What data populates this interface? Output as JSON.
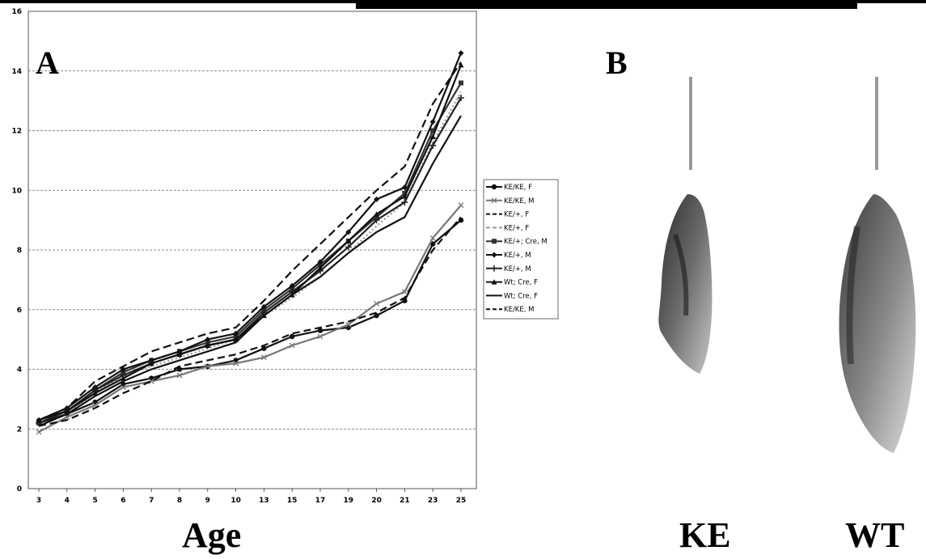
{
  "panels": {
    "a_label": "A",
    "b_label": "B"
  },
  "photo_labels": {
    "ke": "KE",
    "wt": "WT"
  },
  "chart_data": {
    "type": "line",
    "title": "",
    "xlabel": "Age",
    "ylabel": "",
    "categories": [
      "3",
      "4",
      "5",
      "6",
      "7",
      "8",
      "9",
      "10",
      "13",
      "15",
      "17",
      "19",
      "20",
      "21",
      "23",
      "25"
    ],
    "ylim": [
      0,
      16
    ],
    "yticks": [
      "0",
      "2",
      "4",
      "6",
      "8",
      "10",
      "12",
      "14",
      "16"
    ],
    "grid": true,
    "legend_position": "right",
    "series": [
      {
        "name": "KE/KE, F",
        "color": "#111111",
        "dash": "none",
        "marker": "circle",
        "values": [
          2.2,
          2.5,
          2.9,
          3.5,
          3.7,
          4.0,
          4.1,
          4.3,
          4.7,
          5.1,
          5.3,
          5.4,
          5.8,
          6.3,
          8.2,
          9.0
        ]
      },
      {
        "name": "KE/KE, M",
        "color": "#777777",
        "dash": "none",
        "marker": "x",
        "values": [
          1.9,
          2.4,
          2.8,
          3.4,
          3.6,
          3.8,
          4.1,
          4.2,
          4.4,
          4.8,
          5.1,
          5.5,
          6.2,
          6.6,
          8.4,
          9.5
        ]
      },
      {
        "name": "KE/+, F",
        "color": "#111111",
        "dash": "10,5",
        "marker": "none",
        "values": [
          2.3,
          2.7,
          3.6,
          4.1,
          4.6,
          4.9,
          5.2,
          5.4,
          6.3,
          7.3,
          8.2,
          9.1,
          10.0,
          10.8,
          12.9,
          14.3
        ]
      },
      {
        "name": "KE/+, F",
        "color": "#999999",
        "dash": "2,3",
        "marker": "none",
        "values": [
          2.1,
          2.5,
          3.2,
          3.8,
          4.1,
          4.4,
          4.7,
          5.0,
          5.8,
          6.4,
          7.1,
          7.9,
          8.8,
          9.6,
          11.6,
          13.3
        ]
      },
      {
        "name": "KE/+; Cre, M",
        "color": "#333333",
        "dash": "none",
        "marker": "square",
        "values": [
          2.2,
          2.6,
          3.3,
          3.9,
          4.3,
          4.6,
          4.9,
          5.1,
          6.0,
          6.7,
          7.5,
          8.3,
          9.1,
          9.9,
          12.0,
          13.6
        ]
      },
      {
        "name": "KE/+, M",
        "color": "#111111",
        "dash": "none",
        "marker": "diamond",
        "values": [
          2.3,
          2.7,
          3.4,
          4.0,
          4.3,
          4.6,
          5.0,
          5.2,
          6.1,
          6.8,
          7.6,
          8.6,
          9.7,
          10.1,
          12.3,
          14.6
        ]
      },
      {
        "name": "KE/+, M",
        "color": "#222222",
        "dash": "none",
        "marker": "plus",
        "values": [
          2.2,
          2.6,
          3.3,
          3.8,
          4.2,
          4.5,
          4.8,
          5.0,
          5.9,
          6.6,
          7.3,
          8.1,
          9.0,
          9.6,
          11.5,
          13.1
        ]
      },
      {
        "name": "Wt; Cre, F",
        "color": "#111111",
        "dash": "none",
        "marker": "triangle",
        "values": [
          2.3,
          2.6,
          3.2,
          3.7,
          4.2,
          4.5,
          4.8,
          5.0,
          5.8,
          6.5,
          7.4,
          8.3,
          9.2,
          9.8,
          11.8,
          14.2
        ]
      },
      {
        "name": "Wt; Cre, F",
        "color": "#111111",
        "dash": "none",
        "marker": "none",
        "values": [
          2.1,
          2.5,
          3.1,
          3.6,
          4.0,
          4.3,
          4.6,
          4.9,
          5.8,
          6.5,
          7.1,
          7.9,
          8.6,
          9.1,
          10.9,
          12.5
        ]
      },
      {
        "name": "KE/KE, M",
        "color": "#111111",
        "dash": "9,5",
        "marker": "none",
        "values": [
          2.1,
          2.3,
          2.7,
          3.2,
          3.6,
          4.1,
          4.3,
          4.5,
          4.8,
          5.2,
          5.4,
          5.6,
          5.9,
          6.4,
          8.0,
          9.1
        ]
      }
    ]
  }
}
